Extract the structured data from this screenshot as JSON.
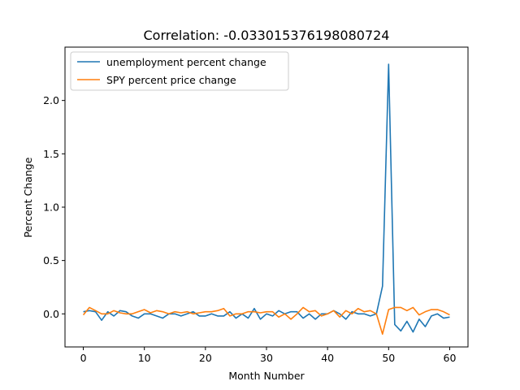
{
  "chart_data": {
    "type": "line",
    "title": "Correlation: -0.033015376198080724",
    "xlabel": "Month Number",
    "ylabel": "Percent Change",
    "xlim": [
      -3,
      63
    ],
    "ylim": [
      -0.31,
      2.5
    ],
    "x_ticks": [
      0,
      10,
      20,
      30,
      40,
      50,
      60
    ],
    "y_ticks": [
      0.0,
      0.5,
      1.0,
      1.5,
      2.0
    ],
    "x_tick_labels": [
      "0",
      "10",
      "20",
      "30",
      "40",
      "50",
      "60"
    ],
    "y_tick_labels": [
      "0.0",
      "0.5",
      "1.0",
      "1.5",
      "2.0"
    ],
    "grid": false,
    "legend_position": "upper-left",
    "series": [
      {
        "name": "unemployment percent change",
        "color": "#1f77b4",
        "x": [
          0,
          1,
          2,
          3,
          4,
          5,
          6,
          7,
          8,
          9,
          10,
          11,
          12,
          13,
          14,
          15,
          16,
          17,
          18,
          19,
          20,
          21,
          22,
          23,
          24,
          25,
          26,
          27,
          28,
          29,
          30,
          31,
          32,
          33,
          34,
          35,
          36,
          37,
          38,
          39,
          40,
          41,
          42,
          43,
          44,
          45,
          46,
          47,
          48,
          49,
          50,
          51,
          52,
          53,
          54,
          55,
          56,
          57,
          58,
          59,
          60
        ],
        "values": [
          0.02,
          0.03,
          0.02,
          -0.06,
          0.02,
          -0.02,
          0.03,
          0.02,
          -0.02,
          -0.04,
          0.0,
          0.0,
          -0.02,
          -0.04,
          0.0,
          0.0,
          -0.02,
          0.0,
          0.02,
          -0.02,
          -0.02,
          0.0,
          -0.02,
          -0.02,
          0.02,
          -0.04,
          0.0,
          -0.04,
          0.05,
          -0.05,
          0.0,
          -0.02,
          0.03,
          0.0,
          0.02,
          0.02,
          -0.04,
          0.0,
          -0.05,
          0.0,
          0.0,
          0.03,
          0.0,
          -0.05,
          0.02,
          0.0,
          0.0,
          -0.02,
          0.0,
          0.26,
          2.34,
          -0.1,
          -0.16,
          -0.07,
          -0.17,
          -0.05,
          -0.12,
          -0.02,
          0.0,
          -0.04,
          -0.03
        ]
      },
      {
        "name": "SPY percent price change",
        "color": "#ff7f0e",
        "x": [
          0,
          1,
          2,
          3,
          4,
          5,
          6,
          7,
          8,
          9,
          10,
          11,
          12,
          13,
          14,
          15,
          16,
          17,
          18,
          19,
          20,
          21,
          22,
          23,
          24,
          25,
          26,
          27,
          28,
          29,
          30,
          31,
          32,
          33,
          34,
          35,
          36,
          37,
          38,
          39,
          40,
          41,
          42,
          43,
          44,
          45,
          46,
          47,
          48,
          49,
          50,
          51,
          52,
          53,
          54,
          55,
          56,
          57,
          58,
          59,
          60
        ],
        "values": [
          -0.01,
          0.06,
          0.03,
          0.0,
          0.0,
          0.03,
          0.01,
          0.0,
          0.0,
          0.02,
          0.04,
          0.01,
          0.03,
          0.02,
          0.0,
          0.02,
          0.01,
          0.02,
          0.0,
          0.01,
          0.02,
          0.02,
          0.03,
          0.05,
          -0.02,
          0.0,
          0.0,
          0.02,
          0.02,
          0.01,
          0.02,
          0.02,
          -0.03,
          0.0,
          -0.05,
          0.0,
          0.06,
          0.02,
          0.03,
          -0.02,
          0.0,
          0.03,
          -0.03,
          0.03,
          0.0,
          0.05,
          0.02,
          0.03,
          0.0,
          -0.19,
          0.04,
          0.06,
          0.06,
          0.03,
          0.06,
          -0.01,
          0.02,
          0.04,
          0.04,
          0.02,
          -0.01
        ]
      }
    ]
  }
}
